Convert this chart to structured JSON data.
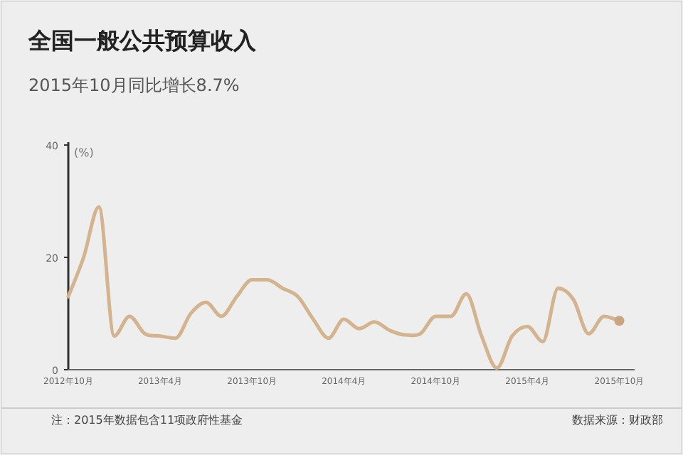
{
  "chart_data": {
    "type": "line",
    "title": "全国一般公共预算收入",
    "subtitle": "2015年10月同比增长8.7%",
    "ylabel": "(%)",
    "annotations": [
      "注：2015年数据包含11项政府性基金",
      "数据来源：财政部"
    ],
    "x": [
      "2012-10",
      "2012-11",
      "2012-12",
      "2013-01",
      "2013-02",
      "2013-03",
      "2013-04",
      "2013-05",
      "2013-06",
      "2013-07",
      "2013-08",
      "2013-09",
      "2013-10",
      "2013-11",
      "2013-12",
      "2014-01",
      "2014-02",
      "2014-03",
      "2014-04",
      "2014-05",
      "2014-06",
      "2014-07",
      "2014-08",
      "2014-09",
      "2014-10",
      "2014-11",
      "2014-12",
      "2015-01",
      "2015-02",
      "2015-03",
      "2015-04",
      "2015-05",
      "2015-06",
      "2015-07",
      "2015-08",
      "2015-09",
      "2015-10"
    ],
    "series": [
      {
        "color": "#d4b48e",
        "values": [
          13,
          20,
          29,
          6,
          9.5,
          6.4,
          6,
          5.6,
          10,
          12,
          9.5,
          13,
          16,
          16,
          14.5,
          13,
          9,
          5.6,
          9,
          7.3,
          8.5,
          7,
          6.2,
          6.4,
          9.5,
          9.5,
          13.5,
          6,
          0.3,
          6,
          7.7,
          5,
          14.5,
          12.5,
          6.4,
          9.5,
          8.7
        ]
      },
      {
        "type": "scatter",
        "color": "#c9a57f",
        "x": [
          "2015-10"
        ],
        "values": [
          8.7
        ],
        "marker": "circle"
      }
    ],
    "xlim": [
      "2012-10",
      "2015-11"
    ],
    "xticks": [
      {
        "value": "2012-10",
        "label": "2012年10月"
      },
      {
        "value": "2013-04",
        "label": "2013年4月"
      },
      {
        "value": "2013-10",
        "label": "2013年10月"
      },
      {
        "value": "2014-04",
        "label": "2014年4月"
      },
      {
        "value": "2014-10",
        "label": "2014年10月"
      },
      {
        "value": "2015-04",
        "label": "2015年4月"
      },
      {
        "value": "2015-10",
        "label": "2015年10月"
      }
    ],
    "ylim": [
      0,
      40
    ],
    "yticks": [
      0,
      20,
      40
    ],
    "grid": false
  }
}
